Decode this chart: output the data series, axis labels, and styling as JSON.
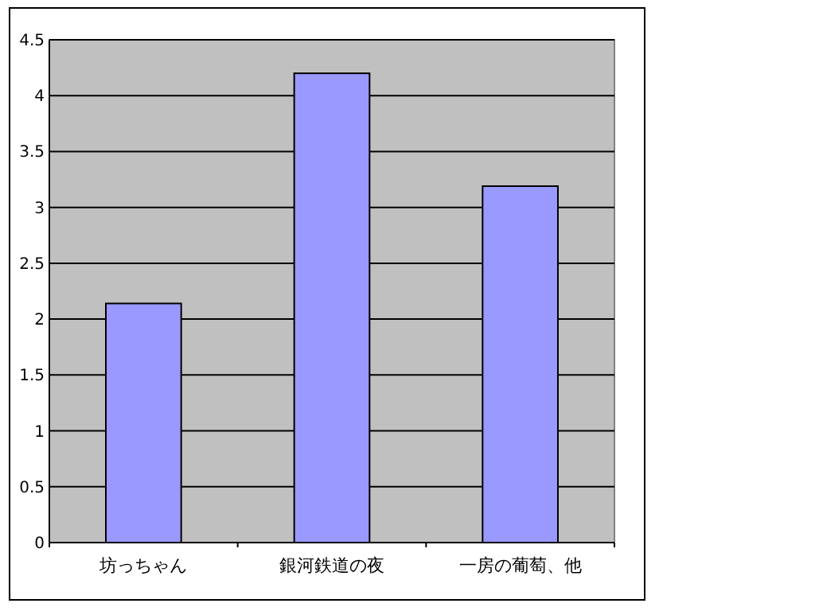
{
  "chart_data": {
    "type": "bar",
    "categories": [
      "坊っちゃん",
      "銀河鉄道の夜",
      "一房の葡萄、他"
    ],
    "values": [
      2.14,
      4.2,
      3.19
    ],
    "color": "#9999ff",
    "ylim": [
      0,
      4.5
    ],
    "yticks": [
      0,
      0.5,
      1,
      1.5,
      2,
      2.5,
      3,
      3.5,
      4,
      4.5
    ],
    "grid": "y"
  }
}
